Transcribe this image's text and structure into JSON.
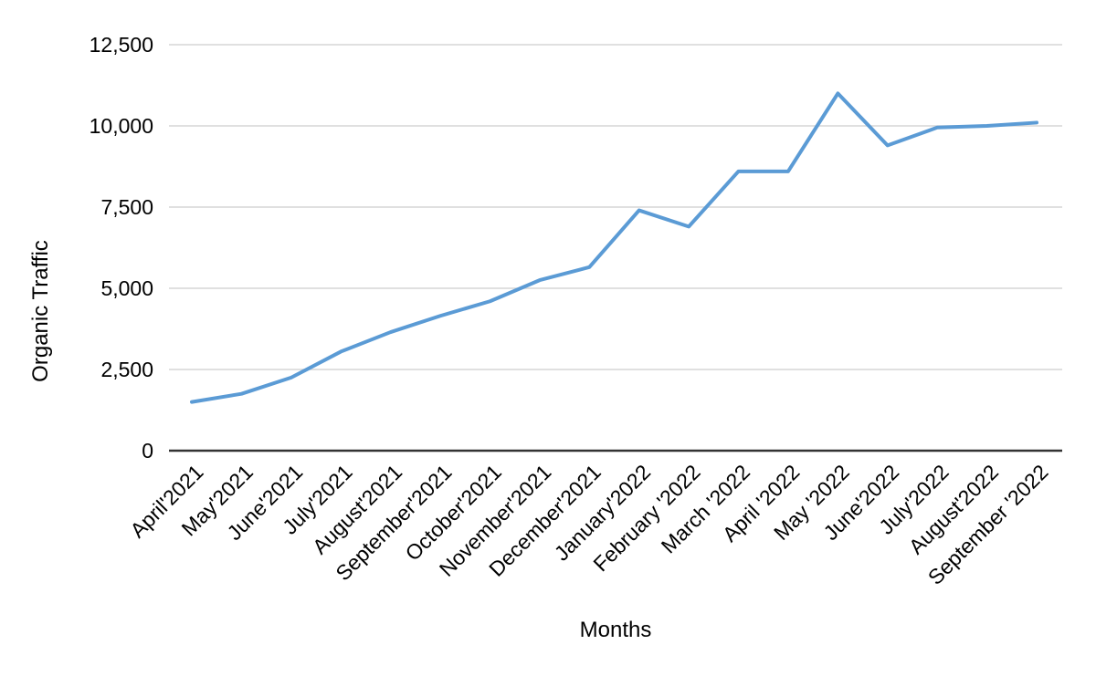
{
  "chart_data": {
    "type": "line",
    "title": "",
    "xlabel": "Months",
    "ylabel": "Organic Traffic",
    "categories": [
      "April'2021",
      "May'2021",
      "June'2021",
      "July'2021",
      "August'2021",
      "September'2021",
      "October'2021",
      "November'2021",
      "December'2021",
      "January'2022",
      "February '2022",
      "March '2022",
      "April '2022",
      "May '2022",
      "June'2022",
      "July'2022",
      "August'2022",
      "September '2022"
    ],
    "series": [
      {
        "name": "Organic Traffic",
        "values": [
          1500,
          1750,
          2250,
          3050,
          3650,
          4150,
          4600,
          5250,
          5650,
          7400,
          6900,
          8600,
          8600,
          11000,
          9400,
          9950,
          10000,
          10100
        ]
      }
    ],
    "ylim": [
      0,
      12500
    ],
    "yticks": [
      0,
      2500,
      5000,
      7500,
      10000,
      12500
    ],
    "ytick_labels": [
      "0",
      "2,500",
      "5,000",
      "7,500",
      "10,000",
      "12,500"
    ],
    "grid": true,
    "legend_position": "none",
    "x_label_angle": -45,
    "colors": {
      "line": "#5b9bd5",
      "gridline": "#d6d6d6",
      "axis": "#333333",
      "text": "#000000",
      "background": "#ffffff"
    }
  }
}
